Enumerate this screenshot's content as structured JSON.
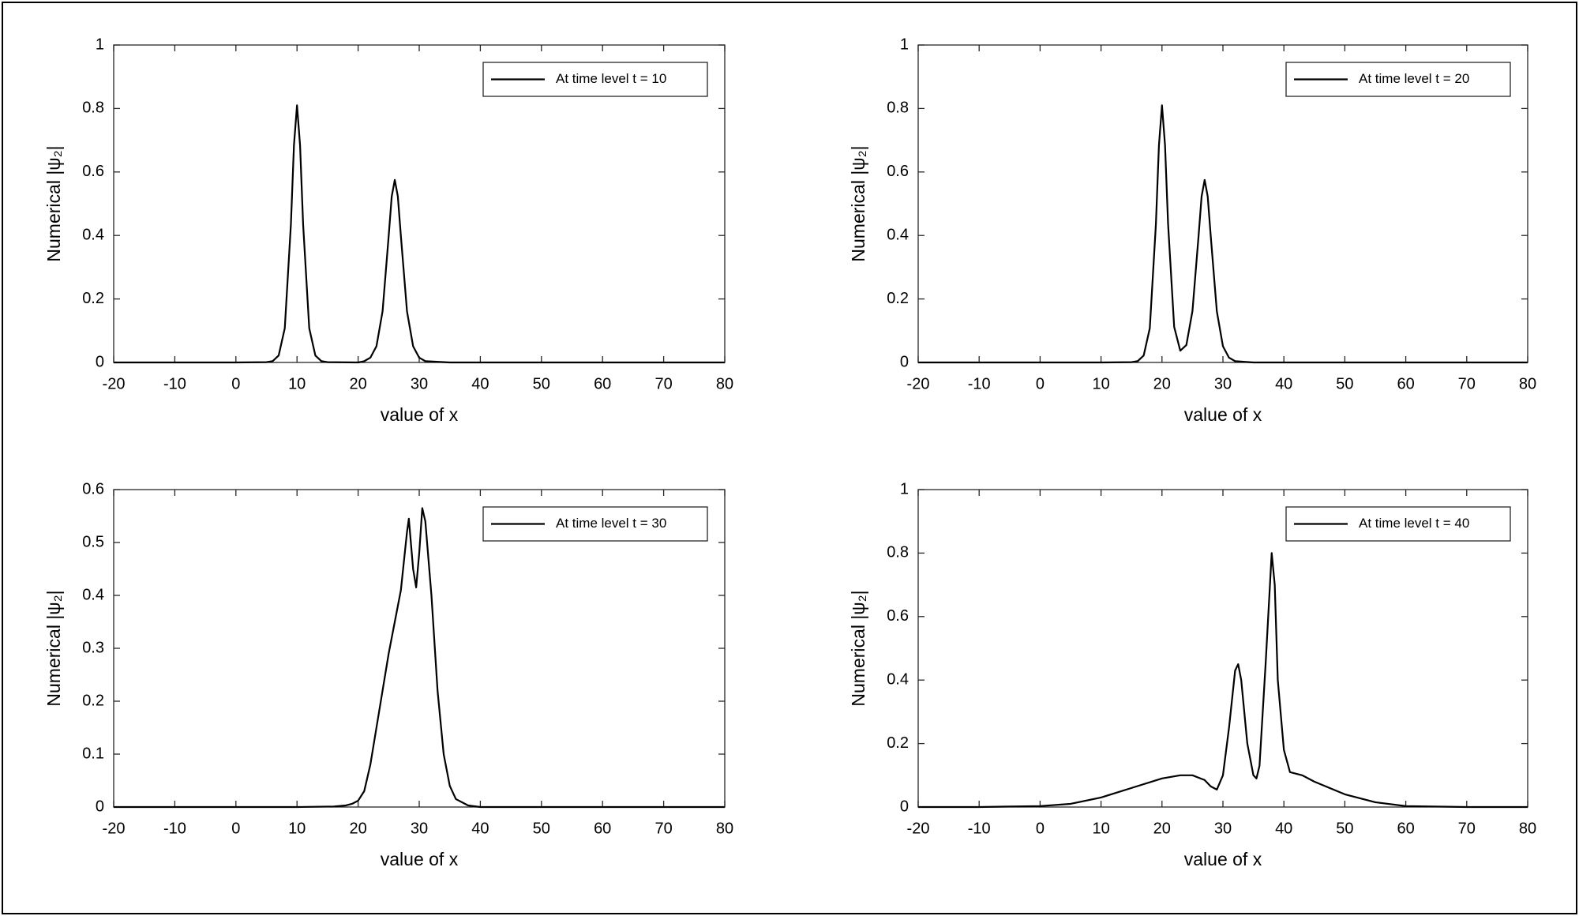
{
  "chart_data": [
    {
      "type": "line",
      "xlabel": "value of x",
      "ylabel": "Numerical |ψ₂|",
      "legend": "upper right",
      "xlim": [
        -20,
        80
      ],
      "ylim": [
        0,
        1
      ],
      "xticks": [
        -20,
        -10,
        0,
        10,
        20,
        30,
        40,
        50,
        60,
        70,
        80
      ],
      "yticks": [
        0,
        0.2,
        0.4,
        0.6,
        0.8,
        1
      ],
      "x": [
        -20,
        0,
        5,
        6,
        7,
        8,
        9,
        9.5,
        10,
        10.5,
        11,
        12,
        13,
        14,
        15,
        20,
        21,
        22,
        23,
        24,
        25,
        25.5,
        26,
        26.5,
        27,
        28,
        29,
        30,
        31,
        35,
        40,
        80
      ],
      "series": [
        {
          "name": "At time level t = 10",
          "color": "#000000",
          "values": [
            0,
            0,
            0.001,
            0.004,
            0.022,
            0.108,
            0.435,
            0.684,
            0.81,
            0.684,
            0.435,
            0.108,
            0.022,
            0.004,
            0.001,
            0,
            0.004,
            0.015,
            0.051,
            0.161,
            0.398,
            0.523,
            0.575,
            0.523,
            0.398,
            0.161,
            0.051,
            0.015,
            0.004,
            0,
            0,
            0
          ]
        }
      ]
    },
    {
      "type": "line",
      "xlabel": "value of x",
      "ylabel": "Numerical |ψ₂|",
      "legend": "upper right",
      "xlim": [
        -20,
        80
      ],
      "ylim": [
        0,
        1
      ],
      "xticks": [
        -20,
        -10,
        0,
        10,
        20,
        30,
        40,
        50,
        60,
        70,
        80
      ],
      "yticks": [
        0,
        0.2,
        0.4,
        0.6,
        0.8,
        1
      ],
      "x": [
        -20,
        10,
        15,
        16,
        17,
        18,
        19,
        19.5,
        20,
        20.5,
        21,
        22,
        23,
        24,
        25,
        26,
        26.5,
        27,
        27.5,
        28,
        29,
        30,
        31,
        32,
        35,
        40,
        80
      ],
      "series": [
        {
          "name": "At time level t = 20",
          "color": "#000000",
          "values": [
            0,
            0,
            0.001,
            0.004,
            0.022,
            0.108,
            0.435,
            0.684,
            0.81,
            0.684,
            0.436,
            0.112,
            0.037,
            0.055,
            0.162,
            0.398,
            0.523,
            0.575,
            0.523,
            0.398,
            0.161,
            0.051,
            0.015,
            0.004,
            0,
            0,
            0
          ]
        }
      ]
    },
    {
      "type": "line",
      "xlabel": "value of x",
      "ylabel": "Numerical |ψ₂|",
      "legend": "upper right",
      "xlim": [
        -20,
        80
      ],
      "ylim": [
        0,
        0.6
      ],
      "xticks": [
        -20,
        -10,
        0,
        10,
        20,
        30,
        40,
        50,
        60,
        70,
        80
      ],
      "yticks": [
        0,
        0.1,
        0.2,
        0.3,
        0.4,
        0.5,
        0.6
      ],
      "x": [
        -20,
        10,
        16,
        18,
        19,
        20,
        21,
        22,
        23,
        24,
        25,
        26,
        27,
        28,
        28.3,
        29,
        29.5,
        30,
        30.5,
        31,
        32,
        33,
        34,
        35,
        36,
        38,
        40,
        80
      ],
      "series": [
        {
          "name": "At time level t = 30",
          "color": "#000000",
          "values": [
            0,
            0,
            0.001,
            0.003,
            0.006,
            0.012,
            0.03,
            0.08,
            0.15,
            0.22,
            0.29,
            0.35,
            0.41,
            0.52,
            0.545,
            0.45,
            0.415,
            0.48,
            0.565,
            0.54,
            0.4,
            0.22,
            0.1,
            0.04,
            0.015,
            0.003,
            0,
            0
          ]
        }
      ]
    },
    {
      "type": "line",
      "xlabel": "value of x",
      "ylabel": "Numerical |ψ₂|",
      "legend": "upper right",
      "xlim": [
        -20,
        80
      ],
      "ylim": [
        0,
        1
      ],
      "xticks": [
        -20,
        -10,
        0,
        10,
        20,
        30,
        40,
        50,
        60,
        70,
        80
      ],
      "yticks": [
        0,
        0.2,
        0.4,
        0.6,
        0.8,
        1
      ],
      "x": [
        -20,
        -10,
        0,
        5,
        10,
        15,
        20,
        23,
        25,
        27,
        28,
        29,
        30,
        31,
        32,
        32.5,
        33,
        34,
        35,
        35.5,
        36,
        37,
        38,
        38.5,
        39,
        40,
        41,
        42,
        43,
        45,
        50,
        55,
        60,
        70,
        80
      ],
      "series": [
        {
          "name": "At time level t = 40",
          "color": "#000000",
          "values": [
            0,
            0,
            0.003,
            0.01,
            0.03,
            0.06,
            0.09,
            0.1,
            0.1,
            0.085,
            0.065,
            0.055,
            0.1,
            0.25,
            0.43,
            0.45,
            0.4,
            0.2,
            0.1,
            0.09,
            0.13,
            0.45,
            0.8,
            0.7,
            0.4,
            0.18,
            0.11,
            0.105,
            0.1,
            0.08,
            0.04,
            0.015,
            0.003,
            0,
            0
          ]
        }
      ]
    }
  ]
}
